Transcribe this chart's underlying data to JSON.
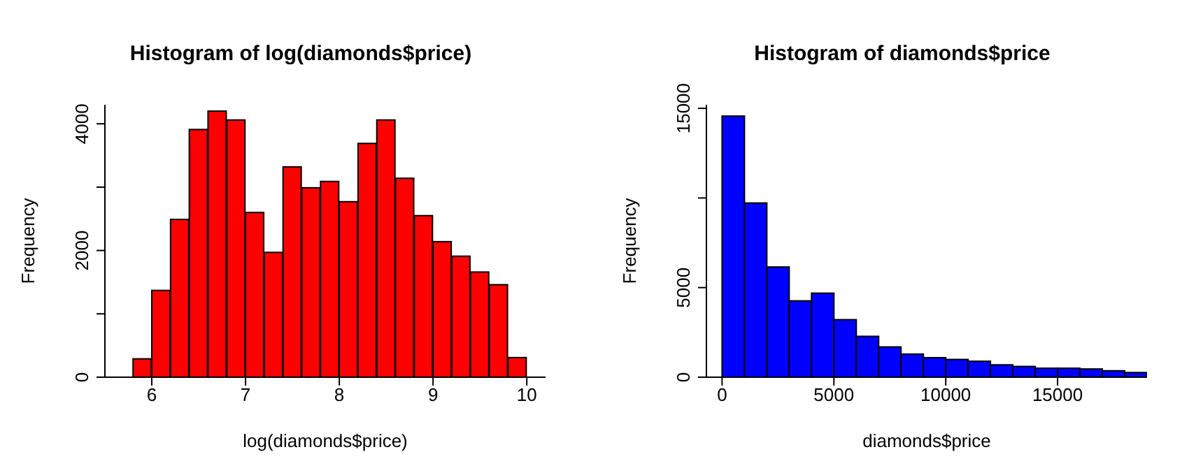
{
  "chart_data": [
    {
      "type": "histogram",
      "title": "Histogram of log(diamonds$price)",
      "xlabel": "log(diamonds$price)",
      "ylabel": "Frequency",
      "color": "#ff0000",
      "bins": [
        5.8,
        6.0,
        6.2,
        6.4,
        6.6,
        6.8,
        7.0,
        7.2,
        7.4,
        7.6,
        7.8,
        8.0,
        8.2,
        8.4,
        8.6,
        8.8,
        9.0,
        9.2,
        9.4,
        9.6,
        9.8,
        10.0
      ],
      "values": [
        290,
        1370,
        2490,
        3910,
        4200,
        4060,
        2600,
        1970,
        3320,
        2990,
        3090,
        2770,
        3690,
        4060,
        3140,
        2550,
        2140,
        1910,
        1660,
        1460,
        310
      ],
      "xlim": [
        5.5,
        10.2
      ],
      "xticks": [
        6,
        7,
        8,
        9,
        10
      ],
      "ylim": [
        0,
        4300
      ],
      "yticks": [
        0,
        {
          "value": 1000,
          "label": null
        },
        2000,
        {
          "value": 3000,
          "label": null
        },
        4000
      ],
      "grid": false,
      "legend": false
    },
    {
      "type": "histogram",
      "title": "Histogram of diamonds$price",
      "xlabel": "diamonds$price",
      "ylabel": "Frequency",
      "color": "#0000ff",
      "bins": [
        0,
        1000,
        2000,
        3000,
        4000,
        5000,
        6000,
        7000,
        8000,
        9000,
        10000,
        11000,
        12000,
        13000,
        14000,
        15000,
        16000,
        17000,
        18000,
        19000
      ],
      "values": [
        14570,
        9720,
        6150,
        4260,
        4690,
        3210,
        2280,
        1690,
        1290,
        1090,
        990,
        890,
        690,
        600,
        500,
        500,
        460,
        360,
        260
      ],
      "xlim": [
        -700,
        19000
      ],
      "xticks": [
        0,
        5000,
        10000,
        15000
      ],
      "ylim": [
        0,
        15200
      ],
      "yticks": [
        0,
        5000,
        {
          "value": 10000,
          "label": null
        },
        15000
      ],
      "grid": false,
      "legend": false
    }
  ]
}
